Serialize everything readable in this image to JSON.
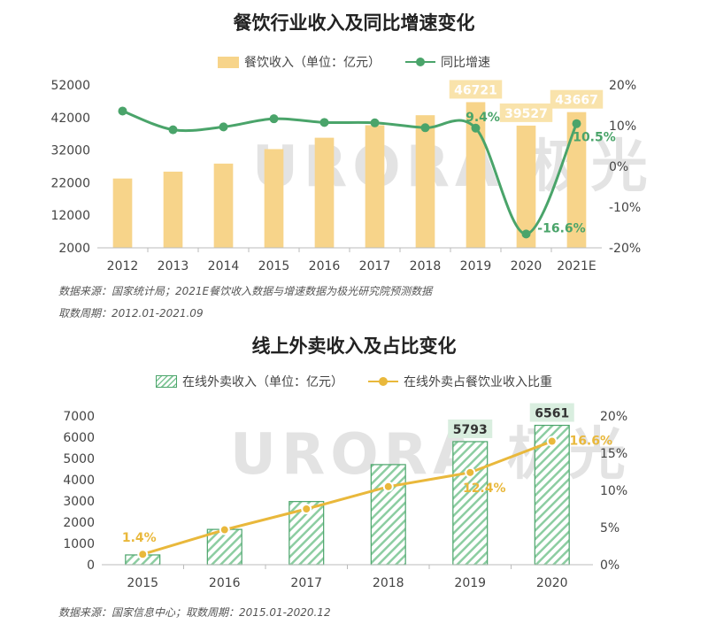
{
  "chart_data": [
    {
      "type": "bar",
      "title": "餐饮行业收入及同比增速变化",
      "categories": [
        "2012",
        "2013",
        "2014",
        "2015",
        "2016",
        "2017",
        "2018",
        "2019",
        "2020",
        "2021E"
      ],
      "series": [
        {
          "name": "餐饮收入（单位：亿元）",
          "type": "bar",
          "axis": "left",
          "values": [
            23283,
            25392,
            27860,
            32310,
            35799,
            39644,
            42716,
            46721,
            39527,
            43667
          ],
          "labels": [
            "",
            "",
            "",
            "",
            "",
            "",
            "",
            "46721",
            "39527",
            "43667"
          ],
          "color": "#f7d48a"
        },
        {
          "name": "同比增速",
          "type": "line",
          "axis": "right",
          "values": [
            13.6,
            9.0,
            9.7,
            11.7,
            10.8,
            10.7,
            9.5,
            9.4,
            -16.6,
            10.5
          ],
          "labels": [
            "",
            "",
            "",
            "",
            "",
            "",
            "",
            "9.4%",
            "-16.6%",
            "10.5%"
          ],
          "color": "#4aa46a"
        }
      ],
      "y_left": {
        "ticks": [
          "2000",
          "12000",
          "22000",
          "32000",
          "42000",
          "52000"
        ],
        "min": 2000,
        "max": 52000
      },
      "y_right": {
        "ticks": [
          "-20%",
          "-10%",
          "0%",
          "10%",
          "20%"
        ],
        "min": -20,
        "max": 20
      },
      "source": "数据来源：国家统计局；2021E餐饮收入数据与增速数据为极光研究院预测数据",
      "period": "取数周期：2012.01-2021.09"
    },
    {
      "type": "bar",
      "title": "线上外卖收入及占比变化",
      "categories": [
        "2015",
        "2016",
        "2017",
        "2018",
        "2019",
        "2020"
      ],
      "series": [
        {
          "name": "在线外卖收入（单位：亿元）",
          "type": "bar",
          "axis": "left",
          "values": [
            460,
            1662,
            2973,
            4712,
            5793,
            6561
          ],
          "labels": [
            "",
            "",
            "",
            "",
            "5793",
            "6561"
          ],
          "color": "#4aa46a"
        },
        {
          "name": "在线外卖占餐饮业收入比重",
          "type": "line",
          "axis": "right",
          "values": [
            1.4,
            4.7,
            7.5,
            10.5,
            12.4,
            16.6
          ],
          "labels": [
            "1.4%",
            "",
            "",
            "",
            "12.4%",
            "16.6%"
          ],
          "color": "#e9b83b"
        }
      ],
      "y_left": {
        "ticks": [
          "0",
          "1000",
          "2000",
          "3000",
          "4000",
          "5000",
          "6000",
          "7000"
        ],
        "min": 0,
        "max": 7000
      },
      "y_right": {
        "ticks": [
          "0%",
          "5%",
          "10%",
          "15%",
          "20%"
        ],
        "min": 0,
        "max": 20
      },
      "source": "数据来源：国家信息中心；取数周期：2015.01-2020.12"
    }
  ],
  "watermark": "URORA 极光"
}
